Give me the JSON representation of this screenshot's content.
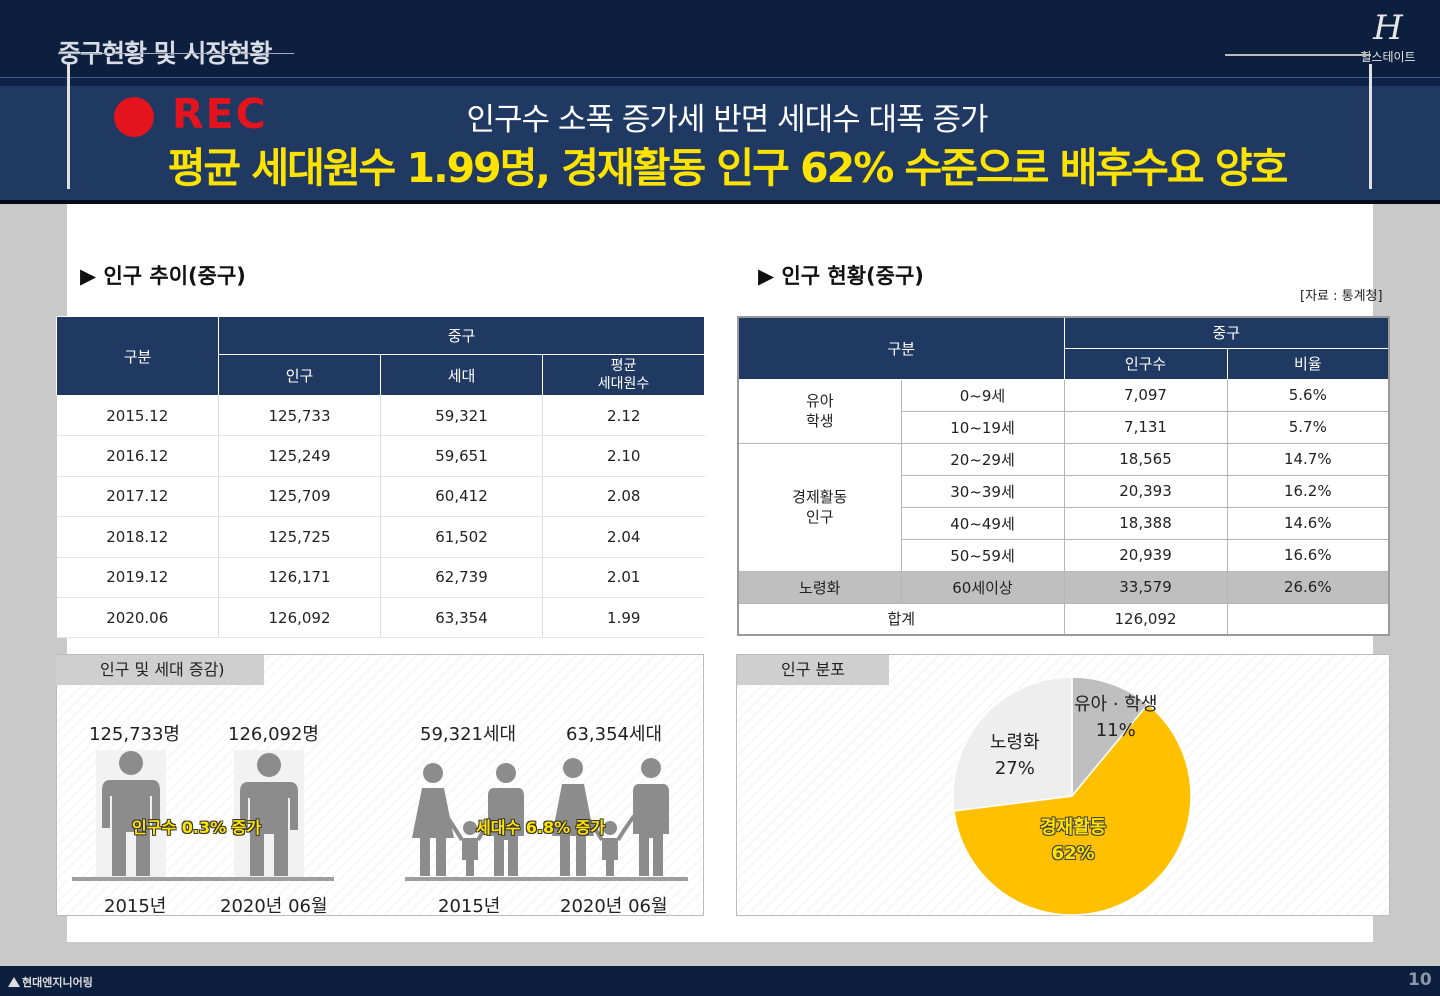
{
  "header": {
    "section_title": "중구현황 및 시장현황",
    "logo_mark": "H",
    "logo_text": "힐스테이트",
    "rec_label": "REC",
    "subtitle": "인구수 소폭 증가세 반면 세대수 대폭 증가",
    "headline": "평균 세대원수 1.99명, 경재활동 인구 62% 수준으로 배후수요 양호"
  },
  "left": {
    "title": "▶ 인구 추이(중구)",
    "table": {
      "h_category": "구분",
      "h_group": "중구",
      "h_population": "인구",
      "h_households": "세대",
      "h_avg": "평균\n세대원수",
      "rows": [
        {
          "date": "2015.12",
          "population": "125,733",
          "households": "59,321",
          "avg": "2.12"
        },
        {
          "date": "2016.12",
          "population": "125,249",
          "households": "59,651",
          "avg": "2.10"
        },
        {
          "date": "2017.12",
          "population": "125,709",
          "households": "60,412",
          "avg": "2.08"
        },
        {
          "date": "2018.12",
          "population": "125,725",
          "households": "61,502",
          "avg": "2.04"
        },
        {
          "date": "2019.12",
          "population": "126,171",
          "households": "62,739",
          "avg": "2.01"
        },
        {
          "date": "2020.06",
          "population": "126,092",
          "households": "63,354",
          "avg": "1.99"
        }
      ]
    },
    "panel": {
      "tag": "인구 및 세대 증감)",
      "pop_2015": "125,733명",
      "pop_2020": "126,092명",
      "pop_change": "인구수 0.3% 증가",
      "hh_2015": "59,321세대",
      "hh_2020": "63,354세대",
      "hh_change": "세대수 6.8% 증가",
      "year_2015": "2015년",
      "year_2020": "2020년 06월"
    }
  },
  "right": {
    "title": "▶ 인구 현황(중구)",
    "source": "[자료 : 통계청]",
    "table": {
      "h_category": "구분",
      "h_group": "중구",
      "h_population": "인구수",
      "h_ratio": "비율",
      "g_youth": "유아\n학생",
      "g_active": "경제활동\n인구",
      "rows": [
        {
          "age": "0~9세",
          "population": "7,097",
          "ratio": "5.6%"
        },
        {
          "age": "10~19세",
          "population": "7,131",
          "ratio": "5.7%"
        },
        {
          "age": "20~29세",
          "population": "18,565",
          "ratio": "14.7%"
        },
        {
          "age": "30~39세",
          "population": "20,393",
          "ratio": "16.2%"
        },
        {
          "age": "40~49세",
          "population": "18,388",
          "ratio": "14.6%"
        },
        {
          "age": "50~59세",
          "population": "20,939",
          "ratio": "16.6%"
        }
      ],
      "aging": {
        "label": "노령화",
        "age": "60세이상",
        "population": "33,579",
        "ratio": "26.6%"
      },
      "total": {
        "label": "합계",
        "population": "126,092"
      }
    },
    "panel": {
      "tag": "인구 분포"
    }
  },
  "chart_data": {
    "type": "pie",
    "title": "인구 분포",
    "slices": [
      {
        "label": "유아 · 학생",
        "value": 11,
        "display": "11%",
        "color": "#bfbfbf"
      },
      {
        "label": "경재활동",
        "value": 62,
        "display": "62%",
        "color": "#ffc000"
      },
      {
        "label": "노령화",
        "value": 27,
        "display": "27%",
        "color": "#eeeeee"
      }
    ]
  },
  "footer": {
    "company": "현대엔지니어링",
    "page": "10"
  }
}
